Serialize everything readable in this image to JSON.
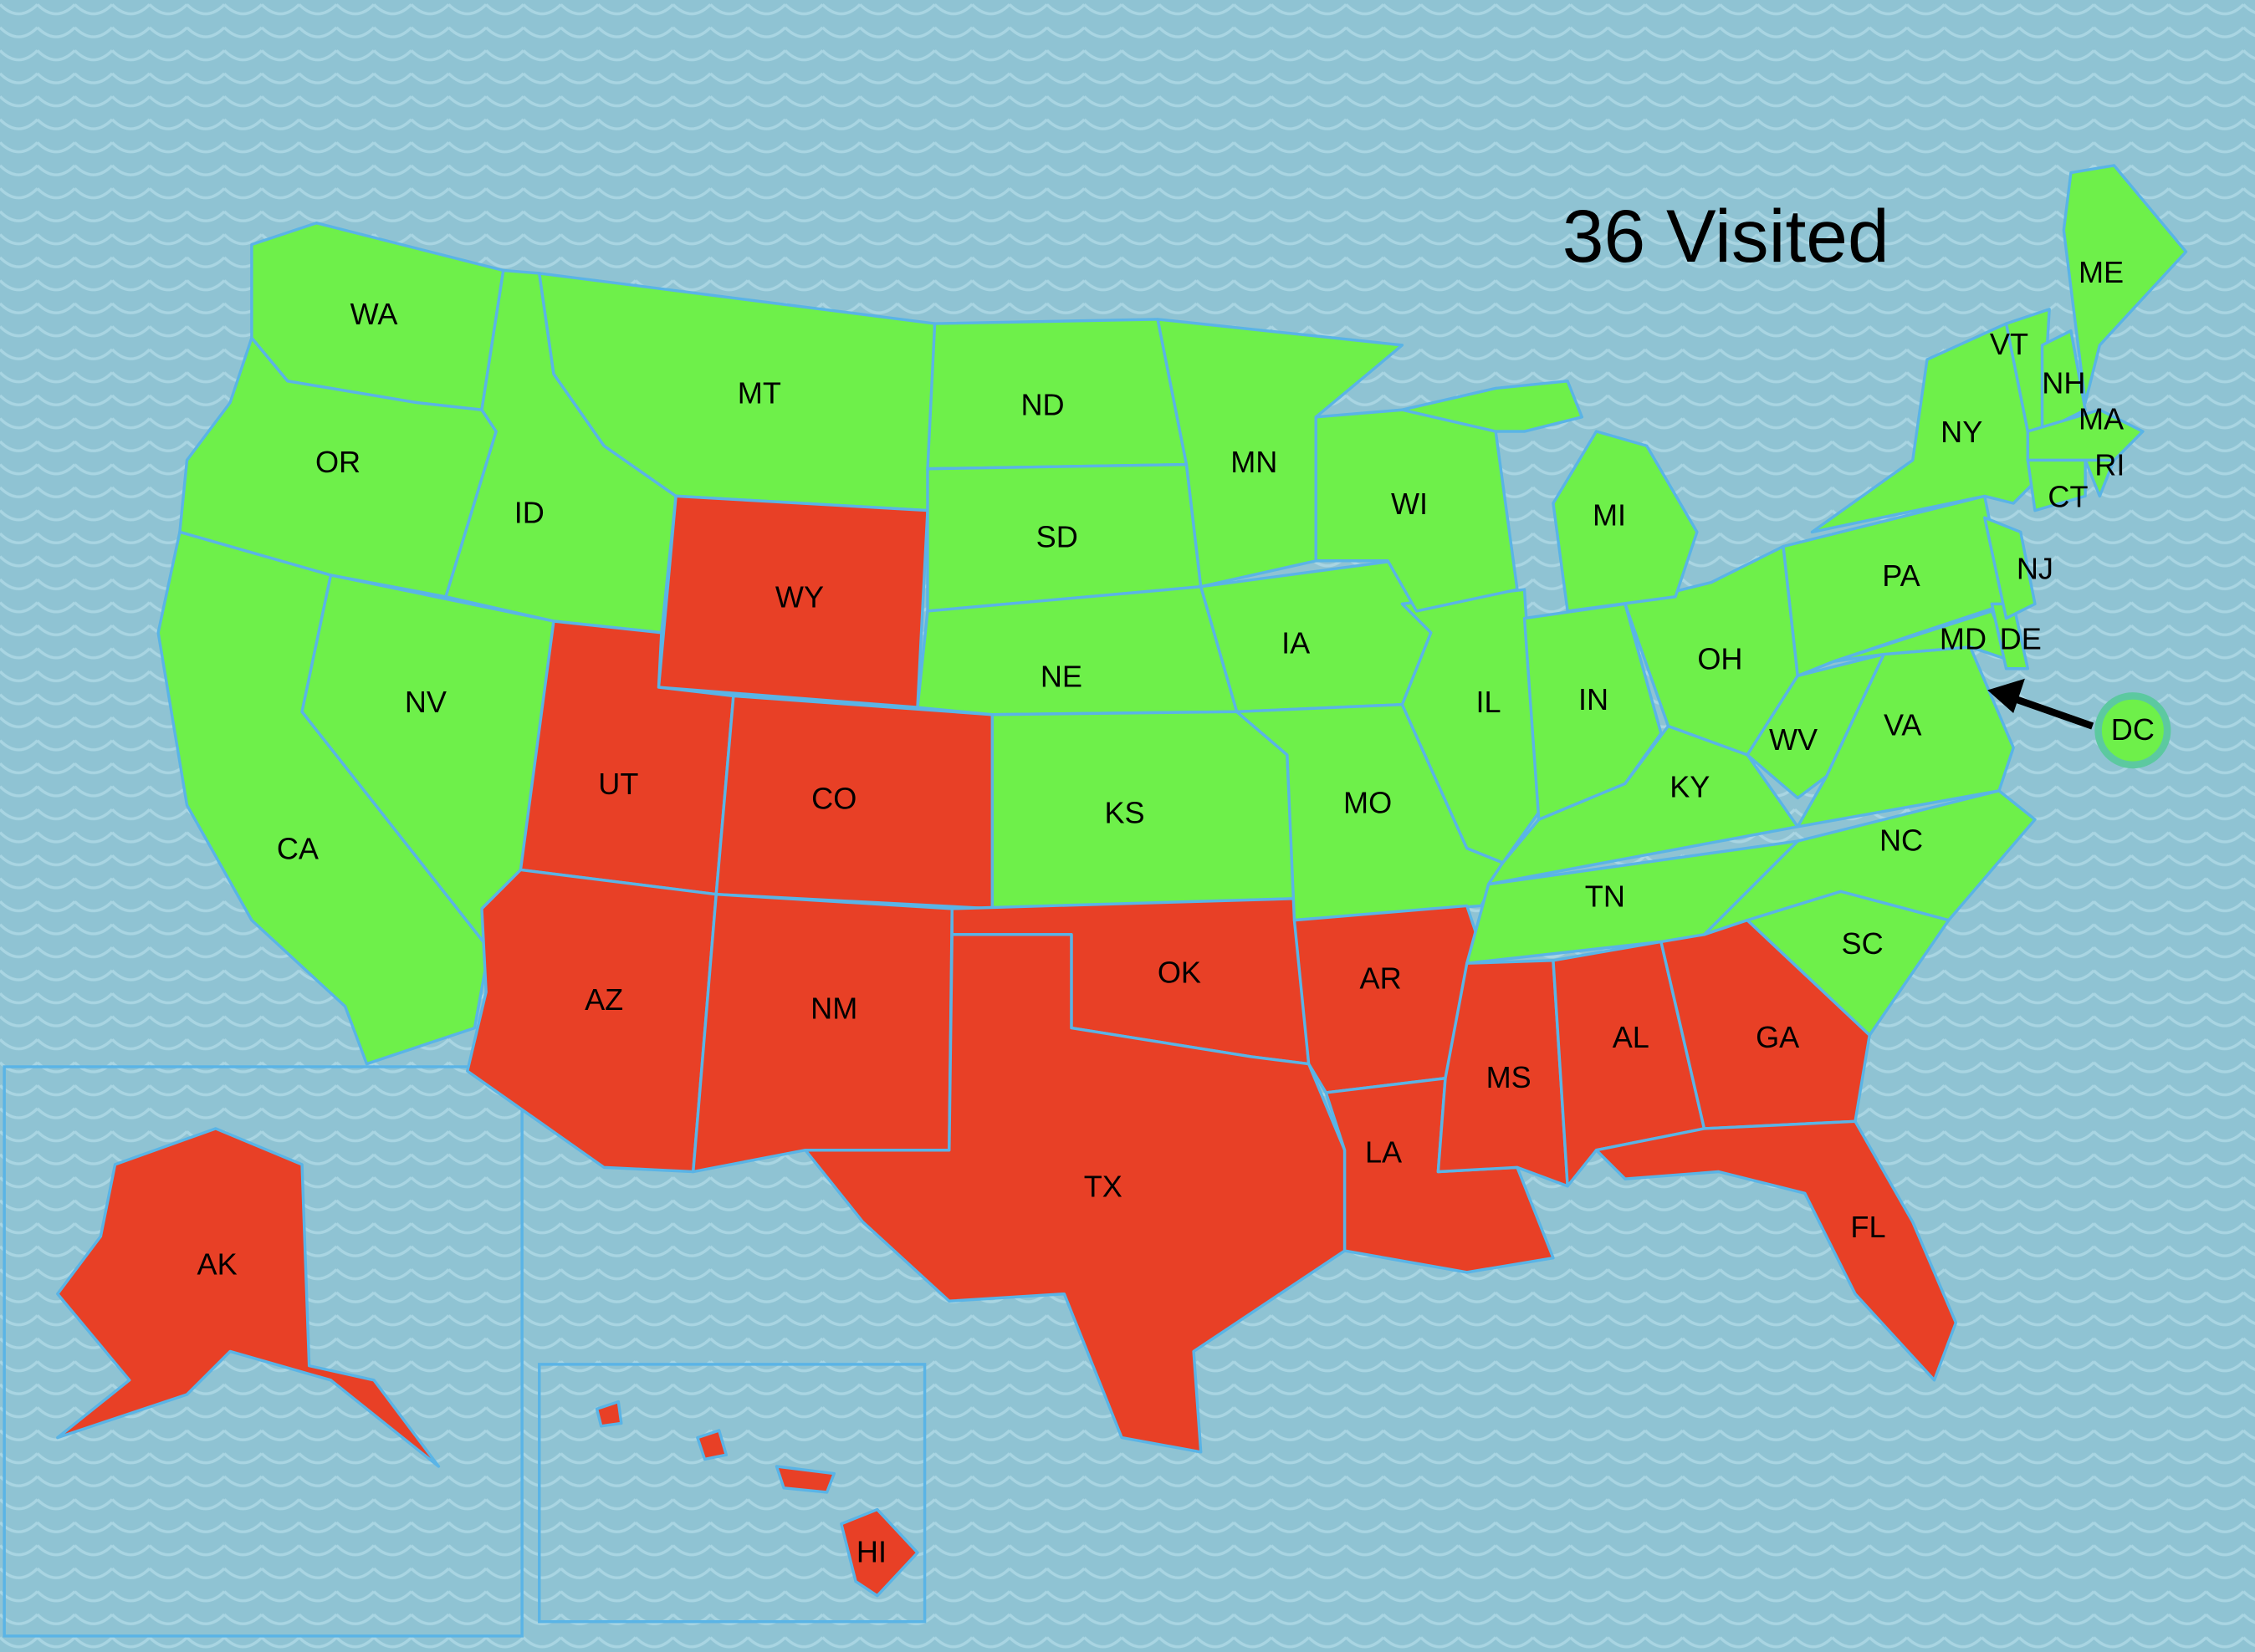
{
  "title": "36 Visited",
  "colors": {
    "visited": "#6ef04a",
    "not_visited": "#e84026",
    "water": "#8fc3d3",
    "border": "#5ab4e6",
    "dc_ring": "#5cc9a0"
  },
  "callout": {
    "label": "DC",
    "visited": true,
    "icon": "arrow-left-icon"
  },
  "states": [
    {
      "abbr": "WA",
      "visited": true
    },
    {
      "abbr": "OR",
      "visited": true
    },
    {
      "abbr": "CA",
      "visited": true
    },
    {
      "abbr": "NV",
      "visited": true
    },
    {
      "abbr": "ID",
      "visited": true
    },
    {
      "abbr": "MT",
      "visited": true
    },
    {
      "abbr": "WY",
      "visited": false
    },
    {
      "abbr": "UT",
      "visited": false
    },
    {
      "abbr": "CO",
      "visited": false
    },
    {
      "abbr": "AZ",
      "visited": false
    },
    {
      "abbr": "NM",
      "visited": false
    },
    {
      "abbr": "ND",
      "visited": true
    },
    {
      "abbr": "SD",
      "visited": true
    },
    {
      "abbr": "NE",
      "visited": true
    },
    {
      "abbr": "KS",
      "visited": true
    },
    {
      "abbr": "OK",
      "visited": false
    },
    {
      "abbr": "TX",
      "visited": false
    },
    {
      "abbr": "MN",
      "visited": true
    },
    {
      "abbr": "IA",
      "visited": true
    },
    {
      "abbr": "MO",
      "visited": true
    },
    {
      "abbr": "AR",
      "visited": false
    },
    {
      "abbr": "LA",
      "visited": false
    },
    {
      "abbr": "MS",
      "visited": false
    },
    {
      "abbr": "AL",
      "visited": false
    },
    {
      "abbr": "GA",
      "visited": false
    },
    {
      "abbr": "FL",
      "visited": false
    },
    {
      "abbr": "SC",
      "visited": true
    },
    {
      "abbr": "NC",
      "visited": true
    },
    {
      "abbr": "TN",
      "visited": true
    },
    {
      "abbr": "KY",
      "visited": true
    },
    {
      "abbr": "IL",
      "visited": true
    },
    {
      "abbr": "IN",
      "visited": true
    },
    {
      "abbr": "OH",
      "visited": true
    },
    {
      "abbr": "MI",
      "visited": true
    },
    {
      "abbr": "WI",
      "visited": true
    },
    {
      "abbr": "WV",
      "visited": true
    },
    {
      "abbr": "VA",
      "visited": true
    },
    {
      "abbr": "PA",
      "visited": true
    },
    {
      "abbr": "NY",
      "visited": true
    },
    {
      "abbr": "MD",
      "visited": true
    },
    {
      "abbr": "DE",
      "visited": true
    },
    {
      "abbr": "NJ",
      "visited": true
    },
    {
      "abbr": "VT",
      "visited": true
    },
    {
      "abbr": "NH",
      "visited": true
    },
    {
      "abbr": "ME",
      "visited": true
    },
    {
      "abbr": "MA",
      "visited": true
    },
    {
      "abbr": "CT",
      "visited": true
    },
    {
      "abbr": "RI",
      "visited": true
    },
    {
      "abbr": "AK",
      "visited": false
    },
    {
      "abbr": "HI",
      "visited": false
    }
  ]
}
